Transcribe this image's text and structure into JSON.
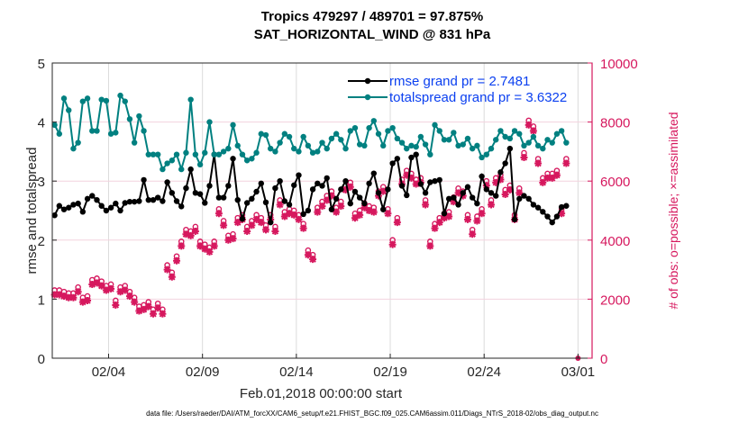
{
  "chart_data": {
    "type": "line",
    "title": [
      "Tropics 479297 / 489701 = 97.875%",
      "SAT_HORIZONTAL_WIND @ 831 hPa"
    ],
    "xlabel": "Feb.01,2018 00:00:00 start",
    "ylabel": "rmse and totalspread",
    "ylabel_right": "# of obs: o=possible; ×=assimilated",
    "footer": "data file: /Users/raeder/DAI/ATM_forcXX/CAM6_setup/f.e21.FHIST_BGC.f09_025.CAM6assim.011/Diags_NTrS_2018-02/obs_diag_output.nc",
    "xlim_days": [
      0,
      28.75
    ],
    "ylim": [
      0,
      5
    ],
    "ylim_right": [
      0,
      10000
    ],
    "x_ticks": [
      {
        "day": 3,
        "label": "02/04"
      },
      {
        "day": 8,
        "label": "02/09"
      },
      {
        "day": 13,
        "label": "02/14"
      },
      {
        "day": 18,
        "label": "02/19"
      },
      {
        "day": 23,
        "label": "02/24"
      },
      {
        "day": 28,
        "label": "03/01"
      }
    ],
    "y_ticks": [
      "0",
      "1",
      "2",
      "3",
      "4",
      "5"
    ],
    "y_ticks_right": [
      "0",
      "2000",
      "4000",
      "6000",
      "8000",
      "10000"
    ],
    "grid": true,
    "legend_position": "top-right",
    "time_step_days": 0.25,
    "series": [
      {
        "name": "rmse grand pr = 2.7481",
        "axis": "left",
        "color": "#000000",
        "values": [
          2.42,
          2.58,
          2.52,
          2.55,
          2.6,
          2.62,
          2.48,
          2.7,
          2.75,
          2.68,
          2.58,
          2.5,
          2.55,
          2.62,
          2.5,
          2.63,
          2.65,
          2.65,
          2.66,
          3.02,
          2.68,
          2.68,
          2.72,
          2.66,
          2.98,
          2.8,
          2.66,
          2.57,
          2.88,
          3.2,
          2.8,
          2.78,
          2.63,
          2.92,
          3.45,
          2.72,
          2.72,
          2.92,
          3.38,
          2.68,
          2.36,
          2.63,
          2.7,
          2.82,
          2.96,
          2.64,
          2.3,
          2.88,
          3.0,
          2.66,
          2.6,
          2.93,
          3.1,
          2.44,
          2.5,
          2.86,
          2.96,
          2.92,
          3.05,
          2.52,
          2.7,
          2.86,
          3.0,
          2.62,
          2.82,
          2.72,
          2.62,
          2.96,
          3.13,
          2.8,
          2.52,
          2.86,
          3.3,
          3.38,
          2.92,
          2.76,
          3.4,
          3.45,
          2.95,
          2.8,
          2.98,
          3.0,
          3.02,
          2.45,
          2.7,
          2.72,
          2.6,
          2.8,
          2.9,
          2.72,
          2.62,
          3.08,
          2.86,
          2.8,
          2.75,
          3.15,
          3.3,
          3.55,
          2.35,
          2.7,
          2.75,
          2.7,
          2.6,
          2.55,
          2.48,
          2.4,
          2.3,
          2.4,
          2.56,
          2.58
        ]
      },
      {
        "name": "totalspread grand pr = 3.6322",
        "axis": "left",
        "color": "#008080",
        "values": [
          3.95,
          3.8,
          4.4,
          4.2,
          3.55,
          3.65,
          4.35,
          4.4,
          3.85,
          3.85,
          4.38,
          4.36,
          3.8,
          3.82,
          4.45,
          4.35,
          4.05,
          3.65,
          4.1,
          3.85,
          3.45,
          3.45,
          3.45,
          3.2,
          3.3,
          3.35,
          3.45,
          3.2,
          3.48,
          4.38,
          3.45,
          3.28,
          3.48,
          4.0,
          3.45,
          3.45,
          3.5,
          3.55,
          3.95,
          3.6,
          3.45,
          3.35,
          3.38,
          3.48,
          3.8,
          3.78,
          3.55,
          3.5,
          3.65,
          3.8,
          3.75,
          3.55,
          3.5,
          3.75,
          3.6,
          3.48,
          3.5,
          3.65,
          3.55,
          3.72,
          3.8,
          3.7,
          3.55,
          3.85,
          3.9,
          3.62,
          3.6,
          3.9,
          4.02,
          3.8,
          3.6,
          3.85,
          3.9,
          3.72,
          3.65,
          3.55,
          3.6,
          3.58,
          3.75,
          3.62,
          3.45,
          3.95,
          3.85,
          3.7,
          3.7,
          3.82,
          3.6,
          3.62,
          3.72,
          3.55,
          3.6,
          3.4,
          3.45,
          3.55,
          3.7,
          3.85,
          3.75,
          3.72,
          3.85,
          3.8,
          3.6,
          3.65,
          3.75,
          3.6,
          3.55,
          3.7,
          3.65,
          3.8,
          3.85,
          3.65
        ]
      },
      {
        "name": "# of obs possible / assimilated",
        "axis": "right",
        "color": "#d6185e",
        "marker": "o / asterisk",
        "values": [
          2150,
          2150,
          2100,
          2050,
          2050,
          2250,
          1900,
          1950,
          2500,
          2550,
          2450,
          2300,
          2350,
          1800,
          2250,
          2300,
          2100,
          1900,
          1600,
          1650,
          1750,
          1500,
          1700,
          1500,
          3000,
          2750,
          3300,
          3800,
          4200,
          4150,
          4300,
          3800,
          3700,
          3600,
          3800,
          4900,
          4500,
          4000,
          4050,
          4600,
          4700,
          4300,
          4500,
          4700,
          4600,
          4350,
          4700,
          4300,
          5200,
          4800,
          4900,
          4850,
          4700,
          4400,
          3500,
          3350,
          4950,
          5150,
          5350,
          5500,
          4950,
          5150,
          5700,
          5800,
          4750,
          4850,
          5100,
          5000,
          4950,
          5500,
          5650,
          4900,
          3850,
          4600,
          5900,
          6200,
          6100,
          5900,
          5950,
          5200,
          3800,
          4400,
          4600,
          4750,
          4800,
          5300,
          5600,
          5500,
          4700,
          4200,
          4650,
          4900,
          5850,
          5200,
          5950,
          6050,
          5550,
          5700,
          4700,
          5600,
          6800,
          7900,
          7700,
          6600,
          5950,
          6100,
          6100,
          6200,
          4900,
          6600
        ]
      }
    ]
  }
}
